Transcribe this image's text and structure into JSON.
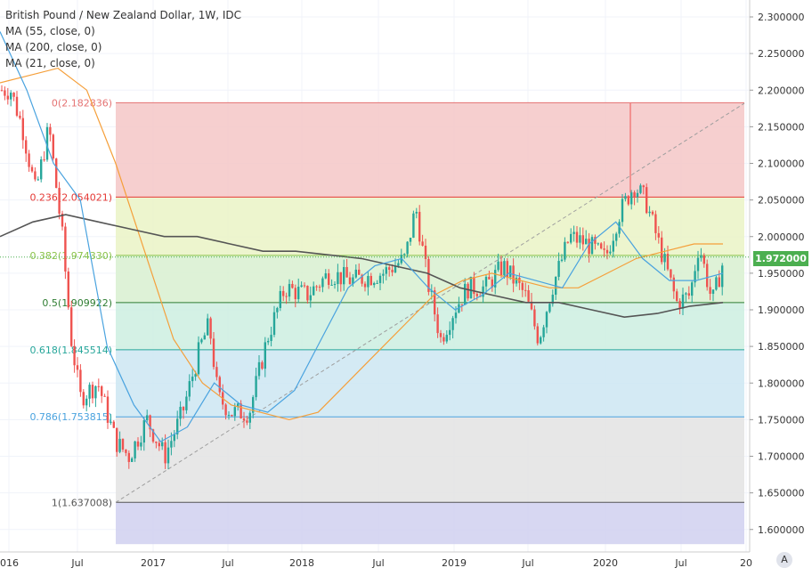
{
  "legend": {
    "title": "British Pound / New Zealand Dollar, 1W, IDC",
    "ma55": "MA (55, close, 0)",
    "ma200": "MA (200, close, 0)",
    "ma21": "MA (21, close, 0)"
  },
  "price_badge": "1.972000",
  "auto_button": "A",
  "colors": {
    "up": "#26a69a",
    "down": "#ef5350",
    "ma55": "#f59f3a",
    "ma200": "#555555",
    "ma21": "#4aa3df"
  },
  "chart_data": {
    "type": "candlestick",
    "ylim": [
      1.58,
      2.32
    ],
    "y_ticks": [
      "2.300000",
      "2.250000",
      "2.200000",
      "2.150000",
      "2.100000",
      "2.050000",
      "2.000000",
      "1.950000",
      "1.900000",
      "1.850000",
      "1.800000",
      "1.750000",
      "1.700000",
      "1.650000",
      "1.600000"
    ],
    "x_ticks": [
      "016",
      "Jul",
      "2017",
      "Jul",
      "2018",
      "Jul",
      "2019",
      "Jul",
      "2020",
      "Jul",
      "20"
    ],
    "current_price": 1.972,
    "fibonacci": [
      {
        "label": "0(2.182836)",
        "value": 2.182836,
        "color": "#e57373",
        "zone": "#f4c7c7"
      },
      {
        "label": "0.236(2.054021)",
        "value": 2.054021,
        "color": "#e53935",
        "zone": "#eaf3c6"
      },
      {
        "label": "0.382(1.974330)",
        "value": 1.97433,
        "color": "#8bc34a",
        "zone": "#d8f0d0"
      },
      {
        "label": "0.5(1.909922)",
        "value": 1.909922,
        "color": "#2e7d32",
        "zone": "#cdeee0"
      },
      {
        "label": "0.618(1.845514)",
        "value": 1.845514,
        "color": "#26a69a",
        "zone": "#cde6f2"
      },
      {
        "label": "0.786(1.753815)",
        "value": 1.753815,
        "color": "#4aa3df",
        "zone": "#e3e3e3"
      },
      {
        "label": "1(1.637008)",
        "value": 1.637008,
        "color": "#555555",
        "zone": "#d0d0f0"
      }
    ],
    "fib_end_value": 1.58,
    "trend_line": {
      "from": 1.637,
      "to": 2.182
    },
    "series": [
      {
        "name": "MA (55, close, 0)",
        "values": [
          2.21,
          2.22,
          2.23,
          2.2,
          2.1,
          1.98,
          1.86,
          1.8,
          1.77,
          1.76,
          1.75,
          1.76,
          1.8,
          1.84,
          1.88,
          1.92,
          1.94,
          1.95,
          1.94,
          1.93,
          1.93,
          1.95,
          1.97,
          1.98,
          1.99,
          1.99
        ]
      },
      {
        "name": "MA (200, close, 0)",
        "values": [
          2.0,
          2.02,
          2.03,
          2.02,
          2.01,
          2.0,
          2.0,
          1.99,
          1.98,
          1.98,
          1.975,
          1.97,
          1.96,
          1.95,
          1.93,
          1.92,
          1.91,
          1.91,
          1.9,
          1.89,
          1.895,
          1.905,
          1.91
        ]
      },
      {
        "name": "MA (21, close, 0)",
        "values": [
          2.28,
          2.2,
          2.1,
          2.05,
          1.85,
          1.77,
          1.72,
          1.74,
          1.8,
          1.77,
          1.76,
          1.79,
          1.86,
          1.93,
          1.96,
          1.97,
          1.93,
          1.9,
          1.92,
          1.95,
          1.94,
          1.93,
          1.99,
          2.02,
          1.97,
          1.94,
          1.94,
          1.95
        ]
      }
    ]
  }
}
